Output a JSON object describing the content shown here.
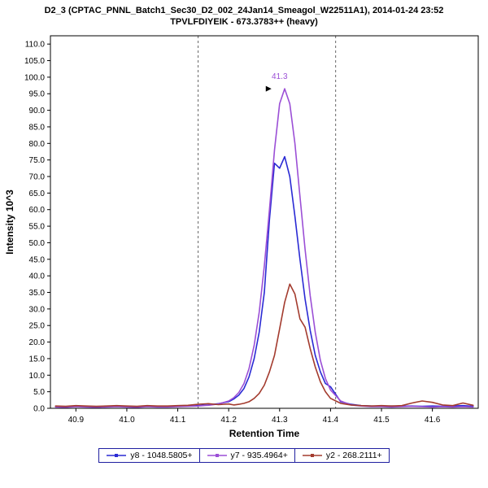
{
  "header": {
    "title_line1": "D2_3 (CPTAC_PNNL_Batch1_Sec30_D2_002_24Jan14_Smeagol_W22511A1), 2014-01-24 23:52",
    "title_line2": "TPVLFDIYEIK - 673.3783++ (heavy)"
  },
  "chart_data": {
    "type": "line",
    "title": "TPVLFDIYEIK - 673.3783++ (heavy)",
    "xlabel": "Retention Time",
    "ylabel": "Intensity 10^3",
    "xlim": [
      40.85,
      41.69
    ],
    "ylim": [
      0,
      112.5
    ],
    "x_ticks": [
      40.9,
      41.0,
      41.1,
      41.2,
      41.3,
      41.4,
      41.5,
      41.6
    ],
    "y_ticks": [
      0,
      5,
      10,
      15,
      20,
      25,
      30,
      35,
      40,
      45,
      50,
      55,
      60,
      65,
      70,
      75,
      80,
      85,
      90,
      95,
      100,
      105,
      110
    ],
    "grid": false,
    "legend_position": "bottom",
    "legend_border": "#2020a0",
    "boundary_color": "#666666",
    "boundaries": [
      41.14,
      41.41
    ],
    "annotation": {
      "text": "41.3",
      "x": 41.3,
      "y": 99.5,
      "color": "#9b4fd6",
      "pointer_x": 41.284,
      "pointer_y": 96.5
    },
    "x": [
      40.86,
      40.88,
      40.9,
      40.92,
      40.94,
      40.96,
      40.98,
      41.0,
      41.02,
      41.04,
      41.06,
      41.08,
      41.1,
      41.12,
      41.14,
      41.16,
      41.18,
      41.2,
      41.21,
      41.22,
      41.23,
      41.24,
      41.25,
      41.26,
      41.27,
      41.28,
      41.29,
      41.3,
      41.31,
      41.32,
      41.33,
      41.34,
      41.35,
      41.36,
      41.37,
      41.38,
      41.39,
      41.4,
      41.42,
      41.44,
      41.46,
      41.48,
      41.5,
      41.52,
      41.54,
      41.56,
      41.58,
      41.6,
      41.62,
      41.64,
      41.66,
      41.68
    ],
    "series": [
      {
        "name": "y8 - 1048.5805+",
        "color": "#2a2ad4",
        "values": [
          0.5,
          0.4,
          0.6,
          0.5,
          0.4,
          0.5,
          0.6,
          0.5,
          0.4,
          0.6,
          0.5,
          0.5,
          0.6,
          0.7,
          0.8,
          1.0,
          1.4,
          2.0,
          2.8,
          4.0,
          6.0,
          9.5,
          15,
          23,
          35,
          57,
          74,
          72.5,
          76,
          70,
          58,
          45,
          33,
          23.5,
          16,
          11,
          7.5,
          6.5,
          2.0,
          1.2,
          0.8,
          0.7,
          0.6,
          0.7,
          0.6,
          0.7,
          0.6,
          0.7,
          0.6,
          0.7,
          0.8,
          0.6
        ]
      },
      {
        "name": "y7 - 935.4964+",
        "color": "#9b4fd6",
        "values": [
          0.4,
          0.3,
          0.5,
          0.4,
          0.3,
          0.4,
          0.5,
          0.4,
          0.3,
          0.5,
          0.4,
          0.4,
          0.5,
          0.6,
          0.7,
          0.9,
          1.3,
          2.2,
          3.2,
          4.8,
          7.5,
          12,
          19,
          29,
          43,
          60,
          78,
          92,
          96.5,
          92,
          80,
          64,
          48,
          34,
          23,
          14.5,
          9,
          5.5,
          2.2,
          1.0,
          0.7,
          0.5,
          0.5,
          0.4,
          0.5,
          0.6,
          0.5,
          0.4,
          0.5,
          0.4,
          0.5,
          0.4
        ]
      },
      {
        "name": "y2 - 268.2111+",
        "color": "#a33b2e",
        "values": [
          0.7,
          0.6,
          0.8,
          0.7,
          0.6,
          0.7,
          0.8,
          0.7,
          0.6,
          0.8,
          0.7,
          0.7,
          0.8,
          0.9,
          1.2,
          1.4,
          1.1,
          1.3,
          1.0,
          1.2,
          1.5,
          2.0,
          3.0,
          4.5,
          7,
          11,
          16,
          24,
          32,
          37.5,
          34.5,
          27,
          24.5,
          18,
          12.5,
          8,
          5,
          3,
          1.5,
          1.0,
          0.8,
          0.7,
          0.8,
          0.7,
          0.8,
          1.6,
          2.2,
          1.8,
          1.0,
          0.8,
          1.6,
          0.9
        ]
      }
    ]
  }
}
